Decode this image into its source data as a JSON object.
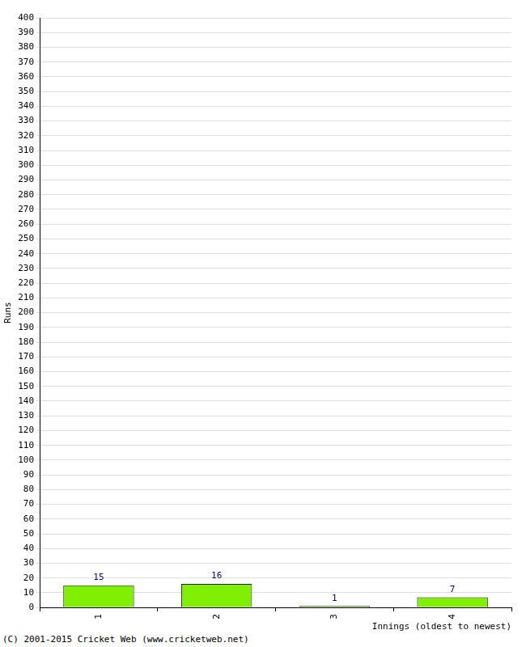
{
  "chart_data": {
    "type": "bar",
    "categories": [
      "1",
      "2",
      "3",
      "4"
    ],
    "values": [
      15,
      16,
      1,
      7
    ],
    "color": "#80f000",
    "x_label": "Innings (oldest to newest)",
    "y_label": "Runs",
    "annotations": [
      "(C) 2001-2015 Cricket Web (www.cricketweb.net)"
    ],
    "ylim": [
      0,
      400
    ],
    "yticks": [
      0,
      10,
      20,
      30,
      40,
      50,
      60,
      70,
      80,
      90,
      100,
      110,
      120,
      130,
      140,
      150,
      160,
      170,
      180,
      190,
      200,
      210,
      220,
      230,
      240,
      250,
      260,
      270,
      280,
      290,
      300,
      310,
      320,
      330,
      340,
      350,
      360,
      370,
      380,
      390,
      400
    ],
    "grid": true,
    "data_labels": true
  }
}
